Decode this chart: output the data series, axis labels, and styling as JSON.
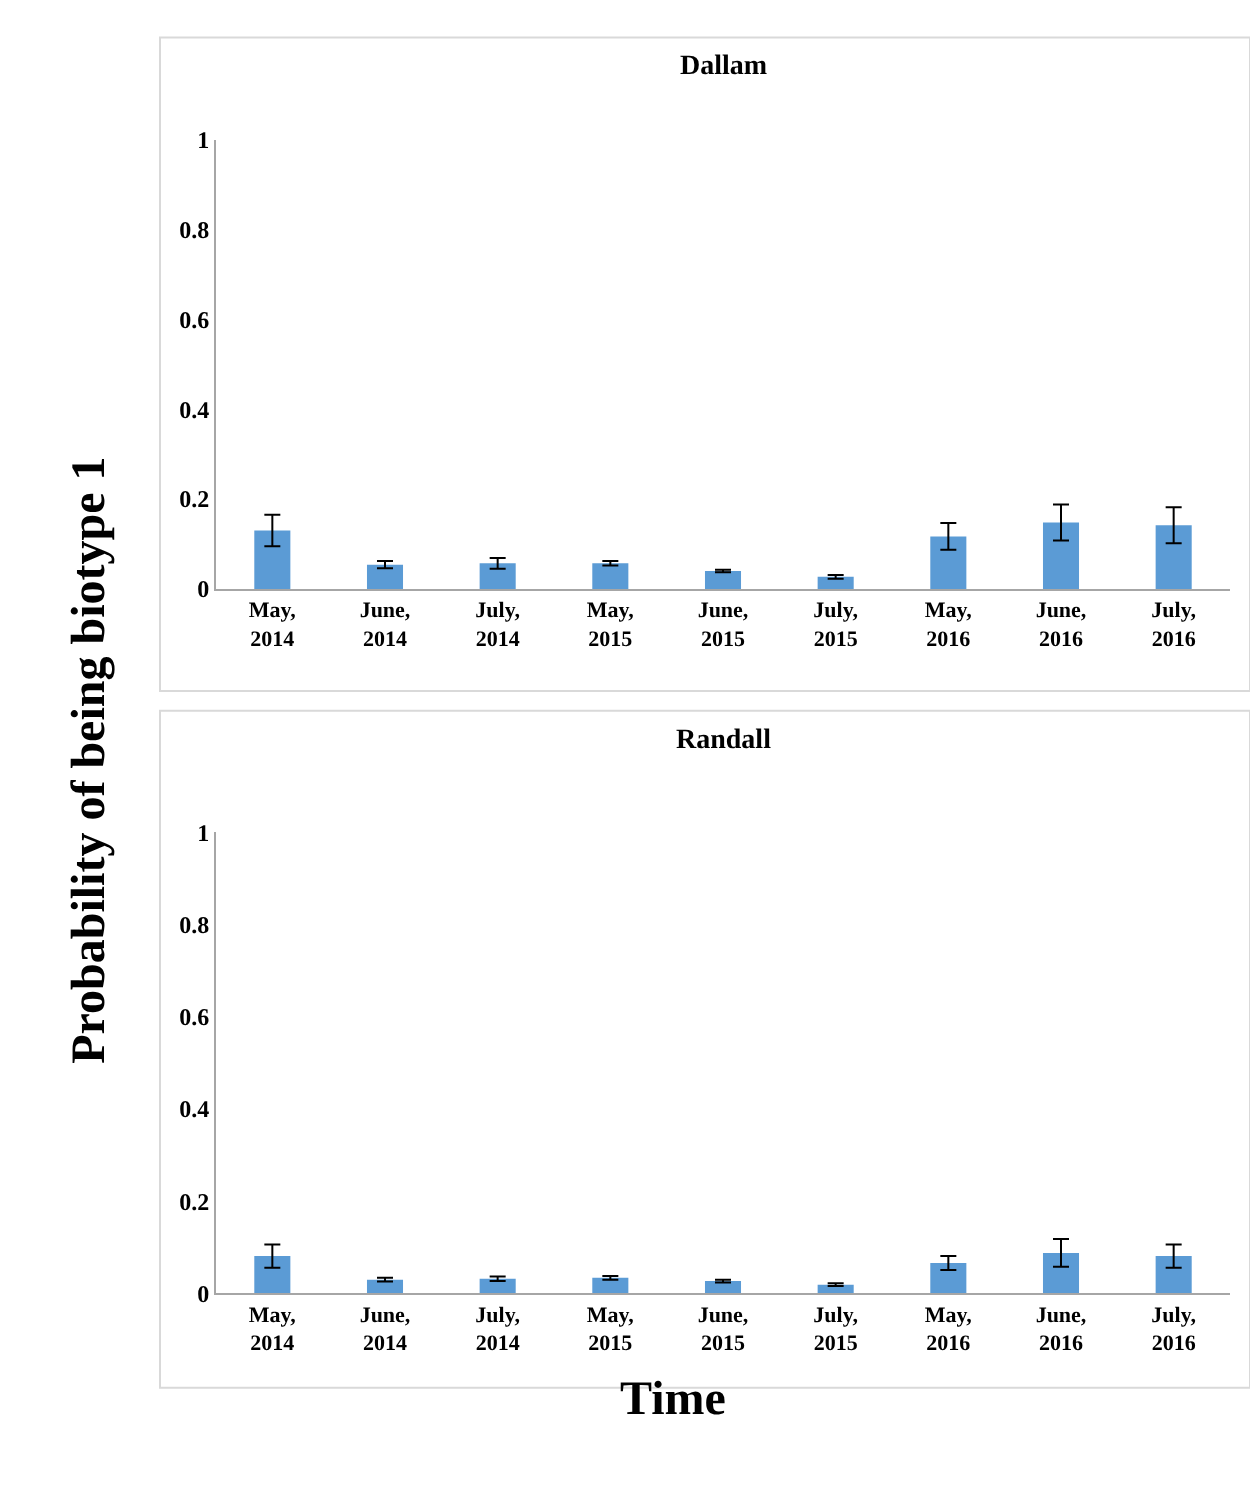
{
  "chart_data": [
    {
      "type": "bar",
      "title": "Dallam",
      "ylabel": "Probability of being biotype 1",
      "categories": [
        "May,\n2014",
        "June,\n2014",
        "July,\n2014",
        "May,\n2015",
        "June,\n2015",
        "July,\n2015",
        "May,\n2016",
        "June,\n2016",
        "July,\n2016"
      ],
      "values": [
        0.13,
        0.054,
        0.057,
        0.057,
        0.04,
        0.027,
        0.117,
        0.148,
        0.142
      ],
      "errors": [
        0.035,
        0.008,
        0.012,
        0.005,
        0.003,
        0.004,
        0.03,
        0.04,
        0.04
      ],
      "color": "#5b9bd5",
      "ylim": [
        0,
        1
      ],
      "yticks": [
        0,
        0.2,
        0.4,
        0.6,
        0.8,
        1
      ]
    },
    {
      "type": "bar",
      "title": "Randall",
      "xlabel": "Time",
      "categories": [
        "May,\n2014",
        "June,\n2014",
        "July,\n2014",
        "May,\n2015",
        "June,\n2015",
        "July,\n2015",
        "May,\n2016",
        "June,\n2016",
        "July,\n2016"
      ],
      "values": [
        0.081,
        0.03,
        0.032,
        0.034,
        0.027,
        0.019,
        0.066,
        0.088,
        0.081
      ],
      "errors": [
        0.025,
        0.004,
        0.005,
        0.004,
        0.003,
        0.003,
        0.015,
        0.03,
        0.025
      ],
      "color": "#5b9bd5",
      "ylim": [
        0,
        1
      ],
      "yticks": [
        0,
        0.2,
        0.4,
        0.6,
        0.8,
        1
      ]
    }
  ]
}
